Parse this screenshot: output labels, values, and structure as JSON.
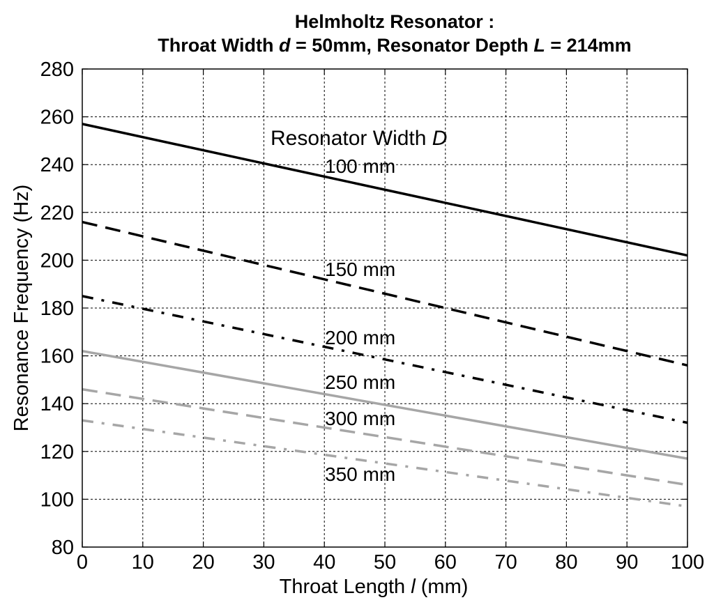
{
  "chart_data": {
    "type": "line",
    "title": {
      "line1": "Helmholtz Resonator :",
      "line2_a": "Throat Width ",
      "line2_d": "d",
      "line2_b": " = 50mm, Resonator Depth ",
      "line2_L": "L",
      "line2_c": " = 214mm"
    },
    "xlabel": {
      "text": "Throat Length ",
      "symbol": "l",
      "unit": " (mm)"
    },
    "ylabel": "Resonance Frequency (Hz)",
    "xlim": [
      0,
      100
    ],
    "ylim": [
      80,
      280
    ],
    "xticks": [
      0,
      10,
      20,
      30,
      40,
      50,
      60,
      70,
      80,
      90,
      100
    ],
    "yticks": [
      80,
      100,
      120,
      140,
      160,
      180,
      200,
      220,
      240,
      260,
      280
    ],
    "grid": true,
    "annotation": {
      "text": "Resonator Width ",
      "symbol": "D"
    },
    "series": [
      {
        "name": "100 mm",
        "color": "#000000",
        "style": "solid",
        "x": [
          0,
          100
        ],
        "y": [
          257,
          202
        ]
      },
      {
        "name": "150 mm",
        "color": "#000000",
        "style": "dashed",
        "x": [
          0,
          100
        ],
        "y": [
          216,
          156
        ]
      },
      {
        "name": "200 mm",
        "color": "#000000",
        "style": "dashdot",
        "x": [
          0,
          100
        ],
        "y": [
          185,
          132
        ]
      },
      {
        "name": "250 mm",
        "color": "#a6a6a6",
        "style": "solid",
        "x": [
          0,
          100
        ],
        "y": [
          162,
          117
        ]
      },
      {
        "name": "300 mm",
        "color": "#a6a6a6",
        "style": "dashed",
        "x": [
          0,
          100
        ],
        "y": [
          146,
          106
        ]
      },
      {
        "name": "350 mm",
        "color": "#a6a6a6",
        "style": "dashdot",
        "x": [
          0,
          100
        ],
        "y": [
          133,
          97
        ]
      }
    ]
  }
}
